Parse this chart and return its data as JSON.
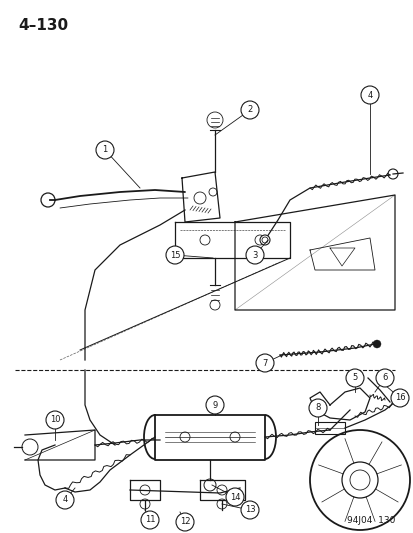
{
  "title": "4–130",
  "watermark": "94J04  130",
  "bg_color": "#ffffff",
  "fg_color": "#1a1a1a",
  "fig_width": 4.14,
  "fig_height": 5.33,
  "dpi": 100
}
